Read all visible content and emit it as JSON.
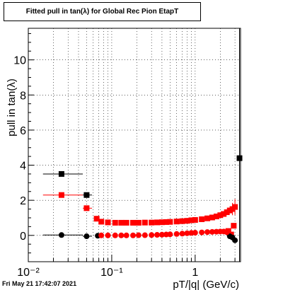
{
  "chart_data": {
    "type": "scatter",
    "title": "Fitted pull in tan(λ) for Global Rec Pion EtapT",
    "xlabel": "pT/|q| (GeV/c)",
    "ylabel": "pull in tan(λ)",
    "x_scale": "log",
    "xlim": [
      0.01,
      3.5
    ],
    "ylim": [
      -1.5,
      11.8
    ],
    "x_ticks": [
      {
        "value": 0.01,
        "label": "10⁻²"
      },
      {
        "value": 0.1,
        "label": "10⁻¹"
      },
      {
        "value": 1,
        "label": "1"
      }
    ],
    "y_ticks": [
      {
        "value": 0,
        "label": "0"
      },
      {
        "value": 2,
        "label": "2"
      },
      {
        "value": 4,
        "label": "4"
      },
      {
        "value": 6,
        "label": "6"
      },
      {
        "value": 8,
        "label": "8"
      },
      {
        "value": 10,
        "label": "10"
      }
    ],
    "grid": true,
    "series": [
      {
        "color": "#000000",
        "marker": "square",
        "points": [
          {
            "x": 0.025,
            "y": 3.5,
            "xerr": [
              0.01,
              0.02
            ],
            "yerr": 0.1
          },
          {
            "x": 0.05,
            "y": 2.3,
            "xerr": [
              0.005,
              0.008
            ],
            "yerr": 0.1
          },
          {
            "x": 3.4,
            "y": 4.4,
            "xerr": [
              0.05,
              0.05
            ],
            "yerr": 7.4
          }
        ]
      },
      {
        "color": "#ff0000",
        "marker": "square",
        "points": [
          {
            "x": 0.025,
            "y": 2.3,
            "xerr": [
              0.01,
              0.02
            ],
            "yerr": 0.1
          },
          {
            "x": 0.05,
            "y": 1.55,
            "xerr": [
              0.005,
              0.008
            ],
            "yerr": 0.1
          },
          {
            "x": 0.066,
            "y": 0.95
          },
          {
            "x": 0.075,
            "y": 0.78
          },
          {
            "x": 0.09,
            "y": 0.74
          },
          {
            "x": 0.11,
            "y": 0.72
          },
          {
            "x": 0.13,
            "y": 0.72
          },
          {
            "x": 0.15,
            "y": 0.72
          },
          {
            "x": 0.18,
            "y": 0.72
          },
          {
            "x": 0.21,
            "y": 0.72
          },
          {
            "x": 0.25,
            "y": 0.73
          },
          {
            "x": 0.3,
            "y": 0.73
          },
          {
            "x": 0.35,
            "y": 0.74
          },
          {
            "x": 0.4,
            "y": 0.75
          },
          {
            "x": 0.45,
            "y": 0.76
          },
          {
            "x": 0.5,
            "y": 0.77
          },
          {
            "x": 0.6,
            "y": 0.79
          },
          {
            "x": 0.7,
            "y": 0.81
          },
          {
            "x": 0.8,
            "y": 0.83
          },
          {
            "x": 0.9,
            "y": 0.86
          },
          {
            "x": 1.0,
            "y": 0.88
          },
          {
            "x": 1.2,
            "y": 0.92
          },
          {
            "x": 1.4,
            "y": 0.97
          },
          {
            "x": 1.6,
            "y": 1.02
          },
          {
            "x": 1.8,
            "y": 1.08
          },
          {
            "x": 2.0,
            "y": 1.15
          },
          {
            "x": 2.2,
            "y": 1.22
          },
          {
            "x": 2.4,
            "y": 1.32
          },
          {
            "x": 2.6,
            "y": 1.42
          },
          {
            "x": 2.8,
            "y": 1.5,
            "yerr": 0.35
          },
          {
            "x": 3.0,
            "y": 1.62,
            "yerr": 0.45
          },
          {
            "x": 2.5,
            "y": 0.25
          },
          {
            "x": 2.7,
            "y": 0.05
          },
          {
            "x": 2.9,
            "y": 0.55
          }
        ]
      },
      {
        "color": "#000000",
        "marker": "circle",
        "points": [
          {
            "x": 0.025,
            "y": 0.02,
            "xerr": [
              0.01,
              0.02
            ]
          },
          {
            "x": 0.05,
            "y": -0.05,
            "xerr": [
              0.005,
              0.008
            ]
          },
          {
            "x": 0.068,
            "y": -0.02
          },
          {
            "x": 2.6,
            "y": -0.05
          },
          {
            "x": 2.8,
            "y": -0.12
          },
          {
            "x": 3.0,
            "y": -0.28
          }
        ]
      },
      {
        "color": "#ff0000",
        "marker": "circle",
        "points": [
          {
            "x": 0.075,
            "y": 0.0
          },
          {
            "x": 0.09,
            "y": 0.0
          },
          {
            "x": 0.11,
            "y": 0.0
          },
          {
            "x": 0.13,
            "y": 0.0
          },
          {
            "x": 0.15,
            "y": 0.0
          },
          {
            "x": 0.18,
            "y": 0.0
          },
          {
            "x": 0.21,
            "y": 0.01
          },
          {
            "x": 0.25,
            "y": 0.01
          },
          {
            "x": 0.3,
            "y": 0.02
          },
          {
            "x": 0.35,
            "y": 0.03
          },
          {
            "x": 0.4,
            "y": 0.04
          },
          {
            "x": 0.45,
            "y": 0.05
          },
          {
            "x": 0.5,
            "y": 0.06
          },
          {
            "x": 0.6,
            "y": 0.08
          },
          {
            "x": 0.7,
            "y": 0.1
          },
          {
            "x": 0.8,
            "y": 0.12
          },
          {
            "x": 0.9,
            "y": 0.14
          },
          {
            "x": 1.0,
            "y": 0.15
          },
          {
            "x": 1.2,
            "y": 0.17
          },
          {
            "x": 1.4,
            "y": 0.19
          },
          {
            "x": 1.6,
            "y": 0.2
          },
          {
            "x": 1.8,
            "y": 0.21
          },
          {
            "x": 2.0,
            "y": 0.22
          },
          {
            "x": 2.2,
            "y": 0.22
          },
          {
            "x": 2.4,
            "y": 0.18
          }
        ]
      }
    ]
  },
  "footer": {
    "timestamp": "Fri May 21 17:42:07 2021"
  }
}
